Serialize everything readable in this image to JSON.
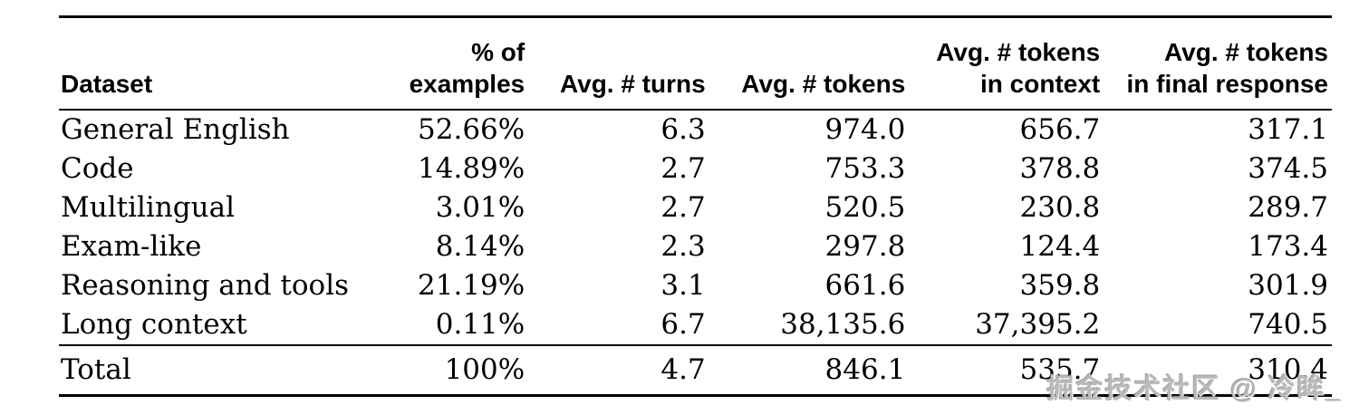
{
  "table": {
    "columns": [
      {
        "top": "",
        "bottom": "Dataset"
      },
      {
        "top": "",
        "bottom": "% of examples"
      },
      {
        "top": "",
        "bottom": "Avg. # turns"
      },
      {
        "top": "",
        "bottom": "Avg. # tokens"
      },
      {
        "top": "Avg. # tokens",
        "bottom": "in context"
      },
      {
        "top": "Avg. # tokens",
        "bottom": "in final response"
      }
    ],
    "rows": [
      [
        "General English",
        "52.66%",
        "6.3",
        "974.0",
        "656.7",
        "317.1"
      ],
      [
        "Code",
        "14.89%",
        "2.7",
        "753.3",
        "378.8",
        "374.5"
      ],
      [
        "Multilingual",
        "3.01%",
        "2.7",
        "520.5",
        "230.8",
        "289.7"
      ],
      [
        "Exam-like",
        "8.14%",
        "2.3",
        "297.8",
        "124.4",
        "173.4"
      ],
      [
        "Reasoning and tools",
        "21.19%",
        "3.1",
        "661.6",
        "359.8",
        "301.9"
      ],
      [
        "Long context",
        "0.11%",
        "6.7",
        "38,135.6",
        "37,395.2",
        "740.5"
      ]
    ],
    "total_row": [
      "Total",
      "100%",
      "4.7",
      "846.1",
      "535.7",
      "310.4"
    ]
  },
  "watermark": {
    "text": "掘金技术社区 @ 冷眸_"
  },
  "colors": {
    "text": "#000000",
    "rule": "#000000",
    "background": "#ffffff",
    "watermark": "#b9b9b9"
  },
  "chart_data": {
    "type": "table",
    "title": "",
    "columns": [
      "Dataset",
      "% of examples",
      "Avg. # turns",
      "Avg. # tokens",
      "Avg. # tokens in context",
      "Avg. # tokens in final response"
    ],
    "rows": [
      [
        "General English",
        "52.66%",
        6.3,
        974.0,
        656.7,
        317.1
      ],
      [
        "Code",
        "14.89%",
        2.7,
        753.3,
        378.8,
        374.5
      ],
      [
        "Multilingual",
        "3.01%",
        2.7,
        520.5,
        230.8,
        289.7
      ],
      [
        "Exam-like",
        "8.14%",
        2.3,
        297.8,
        124.4,
        173.4
      ],
      [
        "Reasoning and tools",
        "21.19%",
        3.1,
        661.6,
        359.8,
        301.9
      ],
      [
        "Long context",
        "0.11%",
        6.7,
        38135.6,
        37395.2,
        740.5
      ],
      [
        "Total",
        "100%",
        4.7,
        846.1,
        535.7,
        310.4
      ]
    ]
  }
}
